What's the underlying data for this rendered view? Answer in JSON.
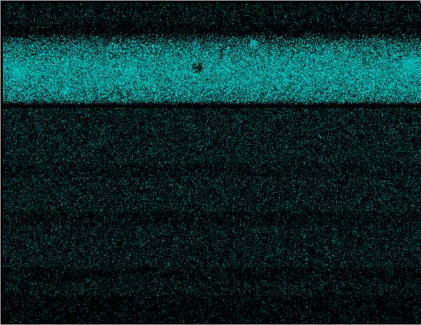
{
  "image": {
    "kind": "fluorescence-micrograph",
    "background_color": "#000000",
    "signal_color": "#00e5e5",
    "frame_color": "#9a9a9a",
    "band": {
      "description_position": "upper",
      "relative_intensity": "high"
    },
    "lower_field": {
      "relative_intensity": "low-sparse-speckle"
    }
  }
}
